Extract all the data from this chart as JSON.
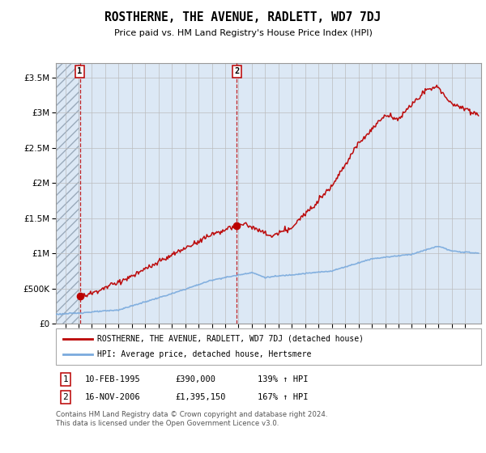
{
  "title": "ROSTHERNE, THE AVENUE, RADLETT, WD7 7DJ",
  "subtitle": "Price paid vs. HM Land Registry's House Price Index (HPI)",
  "ytick_values": [
    0,
    500000,
    1000000,
    1500000,
    2000000,
    2500000,
    3000000,
    3500000
  ],
  "ylim": [
    0,
    3700000
  ],
  "xlim_start": 1993.3,
  "xlim_end": 2025.2,
  "chart_bg_color": "#dce8f5",
  "hatch_area_color": "#c8d0dc",
  "grid_color": "#bbbbbb",
  "red_line_color": "#bb0000",
  "blue_line_color": "#7aaadd",
  "point1_x": 1995.1,
  "point1_y": 390000,
  "point2_x": 2006.88,
  "point2_y": 1395150,
  "dashed_line1_x": 1995.1,
  "dashed_line2_x": 2006.88,
  "legend_red_label": "ROSTHERNE, THE AVENUE, RADLETT, WD7 7DJ (detached house)",
  "legend_blue_label": "HPI: Average price, detached house, Hertsmere",
  "table_row1_num": "1",
  "table_row1_date": "10-FEB-1995",
  "table_row1_price": "£390,000",
  "table_row1_hpi": "139% ↑ HPI",
  "table_row2_num": "2",
  "table_row2_date": "16-NOV-2006",
  "table_row2_price": "£1,395,150",
  "table_row2_hpi": "167% ↑ HPI",
  "footer": "Contains HM Land Registry data © Crown copyright and database right 2024.\nThis data is licensed under the Open Government Licence v3.0."
}
